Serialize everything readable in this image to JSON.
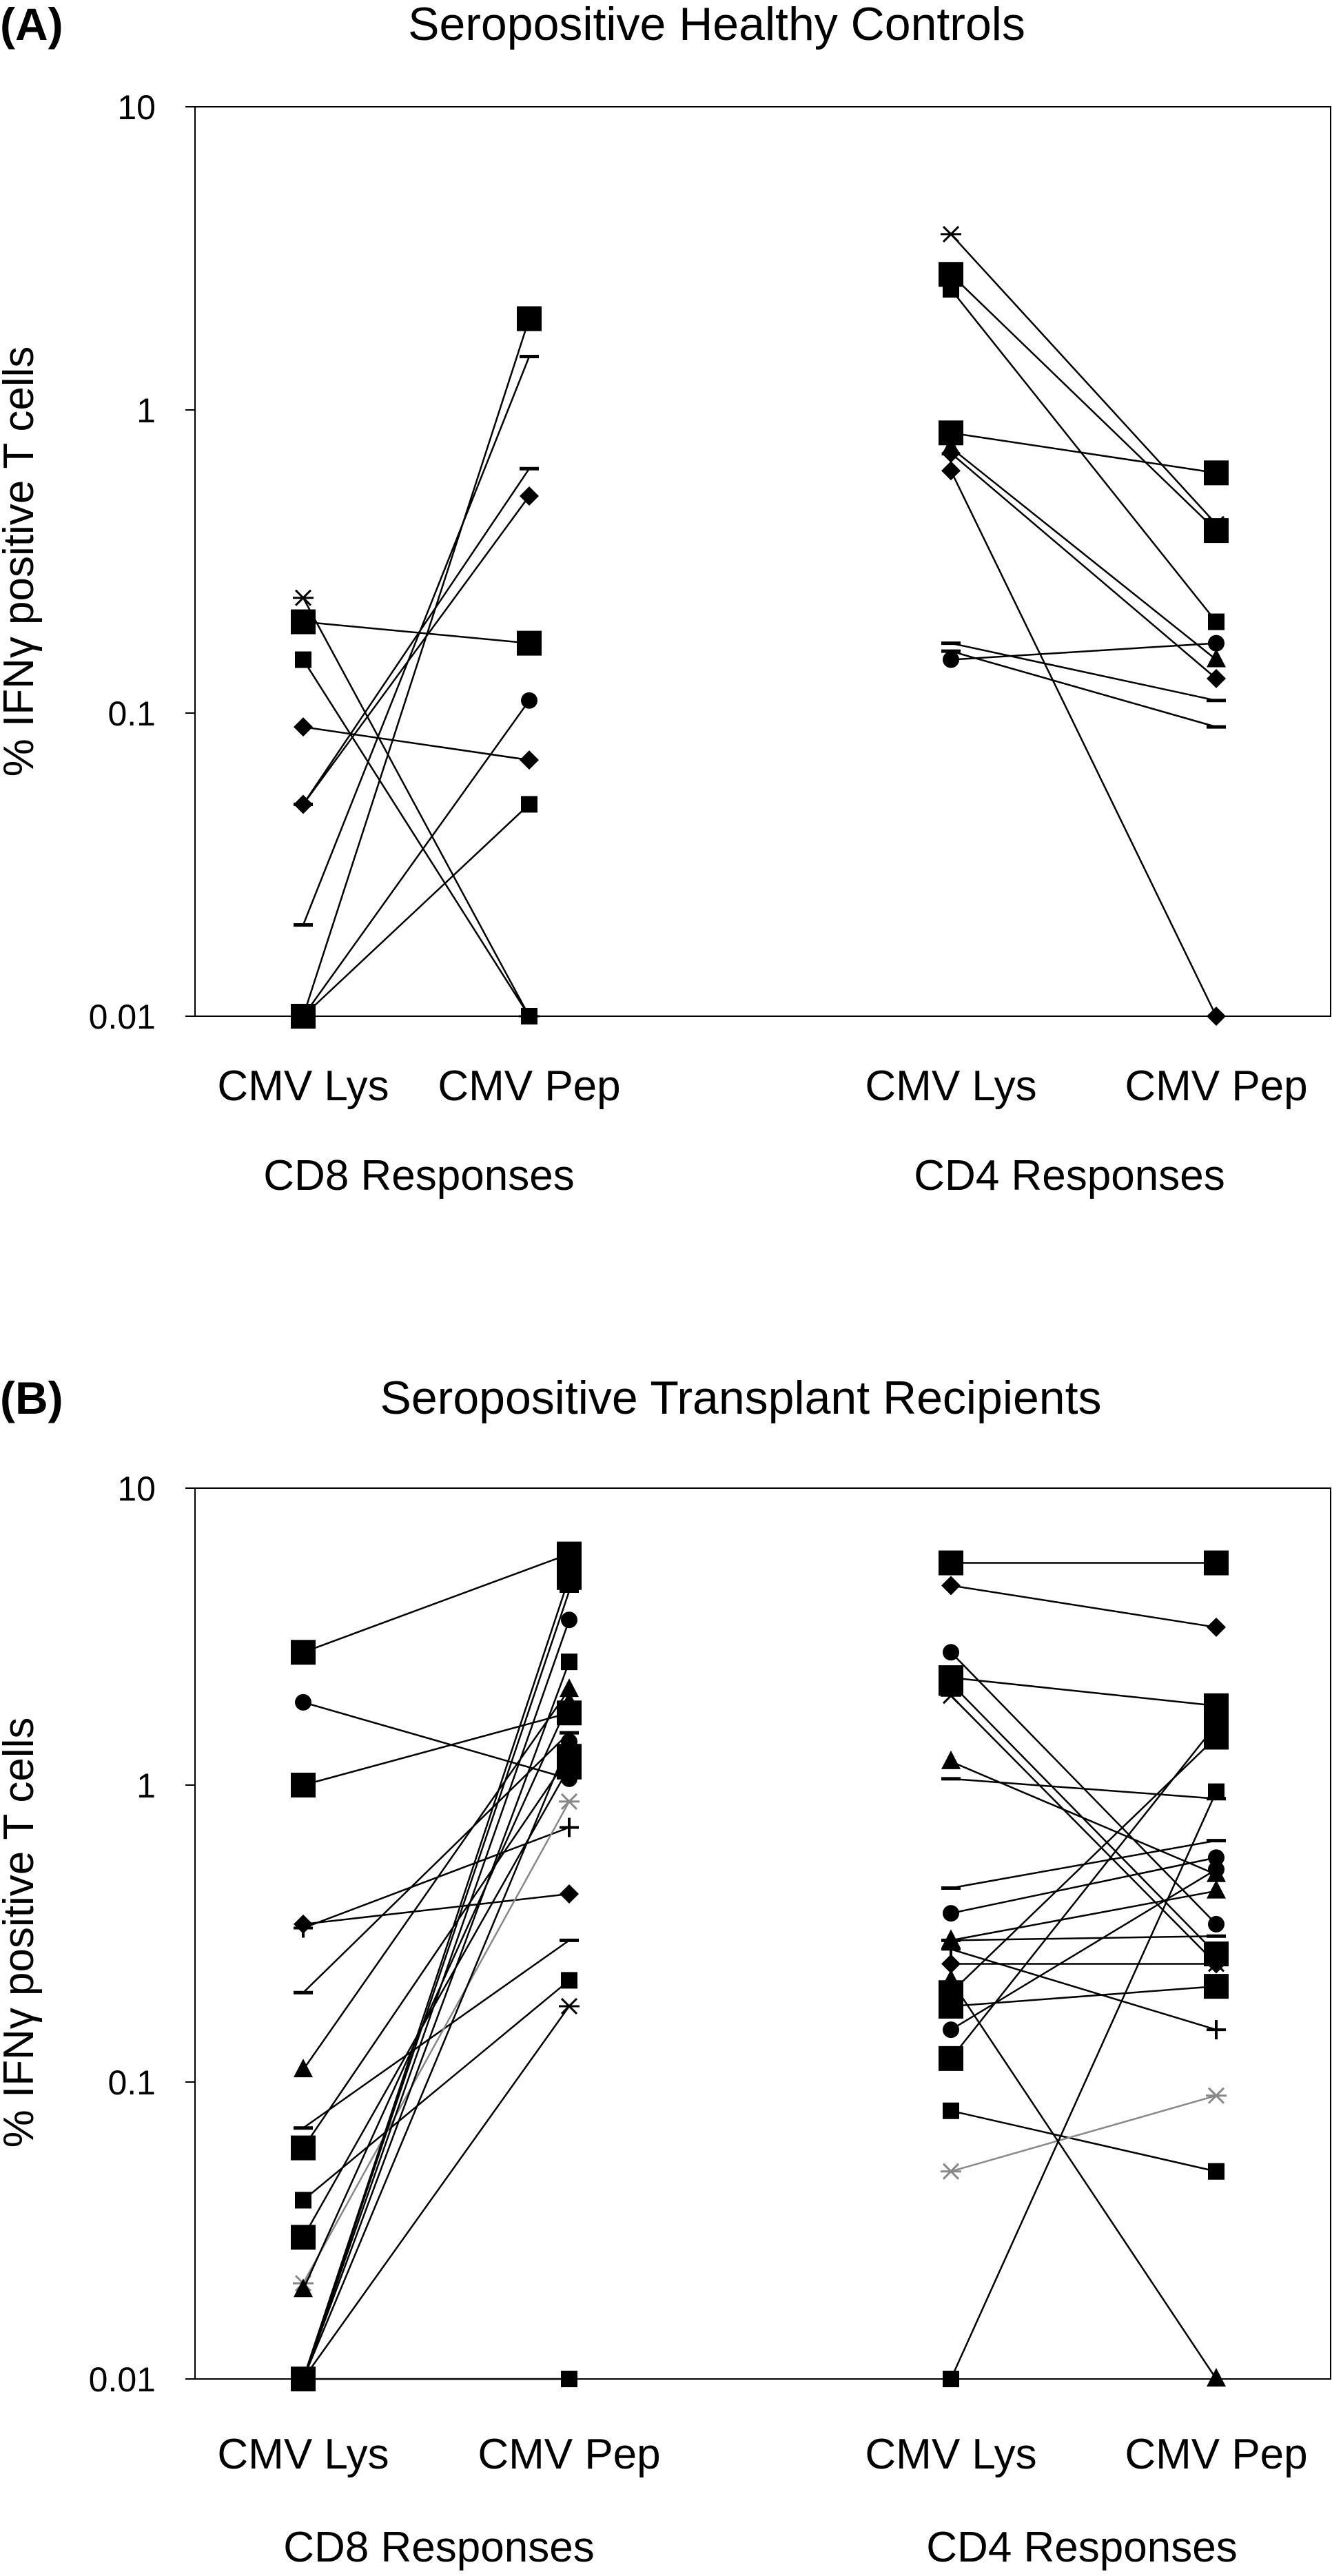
{
  "colors": {
    "black": "#000000",
    "gray": "#888888",
    "frame": "#000000"
  },
  "chart_data": [
    {
      "type": "line",
      "panel_label": "(A)",
      "title": "Seropositive Healthy Controls",
      "ylabel": "% IFNγ positive T cells",
      "yscale": "log",
      "ylim": [
        0.01,
        10
      ],
      "yticks": [
        "0.01",
        "0.1",
        "1",
        "10"
      ],
      "groups": [
        {
          "label": "CD8 Responses",
          "categories": [
            "CMV Lys",
            "CMV Pep"
          ]
        },
        {
          "label": "CD4 Responses",
          "categories": [
            "CMV Lys",
            "CMV Pep"
          ]
        }
      ],
      "series": [
        {
          "group": 0,
          "marker": "square",
          "values": [
            0.2,
            0.17
          ]
        },
        {
          "group": 0,
          "marker": "square-small",
          "values": [
            0.15,
            0.01
          ]
        },
        {
          "group": 0,
          "marker": "star",
          "values": [
            0.24,
            0.01
          ]
        },
        {
          "group": 0,
          "marker": "diamond",
          "values": [
            0.09,
            0.07
          ]
        },
        {
          "group": 0,
          "marker": "diamond",
          "values": [
            0.05,
            0.52
          ]
        },
        {
          "group": 0,
          "marker": "dash",
          "values": [
            0.05,
            0.64
          ]
        },
        {
          "group": 0,
          "marker": "dash",
          "values": [
            0.02,
            1.5
          ]
        },
        {
          "group": 0,
          "marker": "square",
          "values": [
            0.01,
            2.0
          ]
        },
        {
          "group": 0,
          "marker": "circle",
          "values": [
            0.01,
            0.11
          ]
        },
        {
          "group": 0,
          "marker": "square-small",
          "values": [
            0.01,
            0.05
          ]
        },
        {
          "group": 1,
          "marker": "star",
          "values": [
            3.8,
            0.42
          ]
        },
        {
          "group": 1,
          "marker": "square",
          "values": [
            2.8,
            0.4
          ]
        },
        {
          "group": 1,
          "marker": "square-small",
          "values": [
            2.5,
            0.2
          ]
        },
        {
          "group": 1,
          "marker": "square",
          "values": [
            0.84,
            0.62
          ]
        },
        {
          "group": 1,
          "marker": "triangle",
          "values": [
            0.75,
            0.15
          ]
        },
        {
          "group": 1,
          "marker": "diamond",
          "values": [
            0.72,
            0.13
          ]
        },
        {
          "group": 1,
          "marker": "diamond",
          "values": [
            0.63,
            0.01
          ]
        },
        {
          "group": 1,
          "marker": "dash",
          "values": [
            0.17,
            0.11
          ]
        },
        {
          "group": 1,
          "marker": "dash",
          "values": [
            0.16,
            0.09
          ]
        },
        {
          "group": 1,
          "marker": "circle",
          "values": [
            0.15,
            0.17
          ]
        }
      ]
    },
    {
      "type": "line",
      "panel_label": "(B)",
      "title": "Seropositive Transplant Recipients",
      "ylabel": "% IFNγ positive T cells",
      "yscale": "log",
      "ylim": [
        0.01,
        10
      ],
      "yticks": [
        "0.01",
        "0.1",
        "1",
        "10"
      ],
      "groups": [
        {
          "label": "CD8 Responses",
          "categories": [
            "CMV Lys",
            "CMV Pep"
          ]
        },
        {
          "label": "CD4 Responses",
          "categories": [
            "CMV Lys",
            "CMV Pep"
          ]
        }
      ],
      "series": [
        {
          "group": 0,
          "marker": "square",
          "values": [
            2.8,
            6.0
          ]
        },
        {
          "group": 0,
          "marker": "circle",
          "values": [
            1.9,
            1.05
          ]
        },
        {
          "group": 0,
          "marker": "square",
          "values": [
            1.0,
            1.75
          ]
        },
        {
          "group": 0,
          "marker": "diamond",
          "values": [
            0.34,
            0.43
          ]
        },
        {
          "group": 0,
          "marker": "plus",
          "values": [
            0.33,
            0.72
          ]
        },
        {
          "group": 0,
          "marker": "dash",
          "values": [
            0.2,
            1.5
          ]
        },
        {
          "group": 0,
          "marker": "triangle",
          "values": [
            0.11,
            2.1
          ]
        },
        {
          "group": 0,
          "marker": "dash",
          "values": [
            0.07,
            0.3
          ]
        },
        {
          "group": 0,
          "marker": "square",
          "values": [
            0.06,
            1.25
          ]
        },
        {
          "group": 0,
          "marker": "square-small",
          "values": [
            0.04,
            0.22
          ]
        },
        {
          "group": 0,
          "marker": "square",
          "values": [
            0.03,
            1.15
          ]
        },
        {
          "group": 0,
          "marker": "star",
          "color": "gray",
          "values": [
            0.021,
            0.88
          ]
        },
        {
          "group": 0,
          "marker": "triangle",
          "values": [
            0.02,
            1.9
          ]
        },
        {
          "group": 0,
          "marker": "square",
          "values": [
            0.01,
            5.0
          ]
        },
        {
          "group": 0,
          "marker": "circle",
          "values": [
            0.01,
            3.6
          ]
        },
        {
          "group": 0,
          "marker": "square-small",
          "values": [
            0.01,
            2.6
          ]
        },
        {
          "group": 0,
          "marker": "dash",
          "values": [
            0.01,
            4.5
          ]
        },
        {
          "group": 0,
          "marker": "circle",
          "values": [
            0.01,
            1.4
          ]
        },
        {
          "group": 0,
          "marker": "star",
          "values": [
            0.01,
            0.18
          ]
        },
        {
          "group": 0,
          "marker": "square-small",
          "values": [
            0.01,
            0.01
          ]
        },
        {
          "group": 1,
          "marker": "square",
          "values": [
            5.6,
            5.6
          ]
        },
        {
          "group": 1,
          "marker": "diamond",
          "values": [
            4.7,
            3.4
          ]
        },
        {
          "group": 1,
          "marker": "circle",
          "values": [
            2.8,
            0.34
          ]
        },
        {
          "group": 1,
          "marker": "square",
          "values": [
            2.3,
            1.85
          ]
        },
        {
          "group": 1,
          "marker": "square",
          "values": [
            2.2,
            0.27
          ]
        },
        {
          "group": 1,
          "marker": "star",
          "values": [
            2.0,
            0.25
          ]
        },
        {
          "group": 1,
          "marker": "triangle",
          "values": [
            1.2,
            0.5
          ]
        },
        {
          "group": 1,
          "marker": "dash",
          "values": [
            1.05,
            0.9
          ]
        },
        {
          "group": 1,
          "marker": "dash",
          "values": [
            0.45,
            0.65
          ]
        },
        {
          "group": 1,
          "marker": "circle",
          "values": [
            0.37,
            0.57
          ]
        },
        {
          "group": 1,
          "marker": "triangle",
          "values": [
            0.3,
            0.44
          ]
        },
        {
          "group": 1,
          "marker": "dash",
          "values": [
            0.3,
            0.31
          ]
        },
        {
          "group": 1,
          "marker": "plus",
          "values": [
            0.28,
            0.15
          ]
        },
        {
          "group": 1,
          "marker": "diamond",
          "values": [
            0.25,
            0.25
          ]
        },
        {
          "group": 1,
          "marker": "square",
          "values": [
            0.2,
            1.45
          ]
        },
        {
          "group": 1,
          "marker": "square",
          "values": [
            0.18,
            0.21
          ]
        },
        {
          "group": 1,
          "marker": "circle",
          "values": [
            0.15,
            0.52
          ]
        },
        {
          "group": 1,
          "marker": "square",
          "values": [
            0.12,
            1.6
          ]
        },
        {
          "group": 1,
          "marker": "square-small",
          "values": [
            0.08,
            0.05
          ]
        },
        {
          "group": 1,
          "marker": "star",
          "color": "gray",
          "values": [
            0.05,
            0.09
          ]
        },
        {
          "group": 1,
          "marker": "square-small",
          "values": [
            0.01,
            0.95
          ]
        },
        {
          "group": 1,
          "marker": "triangle",
          "values": [
            0.22,
            0.01
          ]
        }
      ]
    }
  ]
}
